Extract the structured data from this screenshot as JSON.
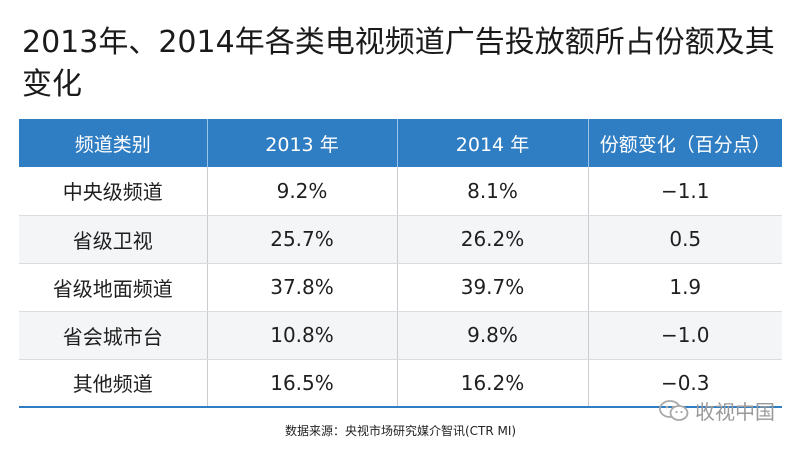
{
  "page": {
    "title": "2013年、2014年各类电视频道广告投放额所占份额及其变化",
    "source": "数据来源：央视市场研究媒介智讯(CTR MI)",
    "watermark": "收视中国",
    "watermark_icon": "wechat-icon"
  },
  "colors": {
    "header_bg": "#2f7dc3",
    "header_text": "#ffffff",
    "row_alt_bg": "#f4f5f7"
  },
  "chart_data": {
    "type": "table",
    "title": "2013年、2014年各类电视频道广告投放额所占份额及其变化",
    "columns": [
      "频道类别",
      "2013 年",
      "2014 年",
      "份额变化（百分点）"
    ],
    "rows": [
      [
        "中央级频道",
        "9.2%",
        "8.1%",
        "−1.1"
      ],
      [
        "省级卫视",
        "25.7%",
        "26.2%",
        "0.5"
      ],
      [
        "省级地面频道",
        "37.8%",
        "39.7%",
        "1.9"
      ],
      [
        "省会城市台",
        "10.8%",
        "9.8%",
        "−1.0"
      ],
      [
        "其他频道",
        "16.5%",
        "16.2%",
        "−0.3"
      ]
    ]
  }
}
